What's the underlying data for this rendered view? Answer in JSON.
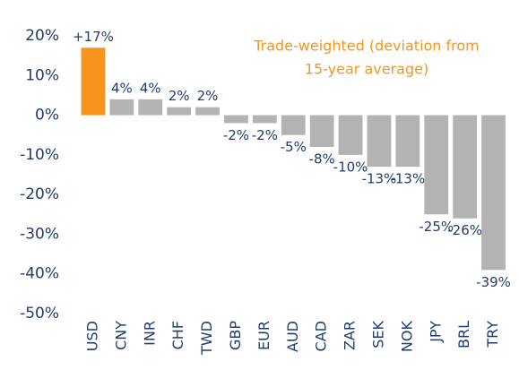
{
  "chart_data": {
    "type": "bar",
    "annotation": [
      "Trade-weighted (deviation from",
      "15-year average)"
    ],
    "annotation_color": "#f7941d",
    "categories": [
      "USD",
      "CNY",
      "INR",
      "CHF",
      "TWD",
      "GBP",
      "EUR",
      "AUD",
      "CAD",
      "ZAR",
      "SEK",
      "NOK",
      "JPY",
      "BRL",
      "TRY"
    ],
    "values": [
      17,
      4,
      4,
      2,
      2,
      -2,
      -2,
      -5,
      -8,
      -10,
      -13,
      -13,
      -25,
      -26,
      -39
    ],
    "value_labels": [
      "+17%",
      "4%",
      "4%",
      "2%",
      "2%",
      "-2%",
      "-2%",
      "-5%",
      "-8%",
      "-10%",
      "-13%",
      "-13%",
      "-25%",
      "-26%",
      "-39%"
    ],
    "colors": [
      "#f7941d",
      "#b3b3b3",
      "#b3b3b3",
      "#b3b3b3",
      "#b3b3b3",
      "#b3b3b3",
      "#b3b3b3",
      "#b3b3b3",
      "#b3b3b3",
      "#b3b3b3",
      "#b3b3b3",
      "#b3b3b3",
      "#b3b3b3",
      "#b3b3b3",
      "#b3b3b3"
    ],
    "ylim": [
      -50,
      20
    ],
    "yticks": [
      {
        "value": 20,
        "label": "20%"
      },
      {
        "value": 10,
        "label": "10%"
      },
      {
        "value": 0,
        "label": "0%"
      },
      {
        "value": -10,
        "label": "-10%"
      },
      {
        "value": -20,
        "label": "-20%"
      },
      {
        "value": -30,
        "label": "-30%"
      },
      {
        "value": -40,
        "label": "-40%"
      },
      {
        "value": -50,
        "label": "-50%"
      }
    ],
    "grid": false
  }
}
